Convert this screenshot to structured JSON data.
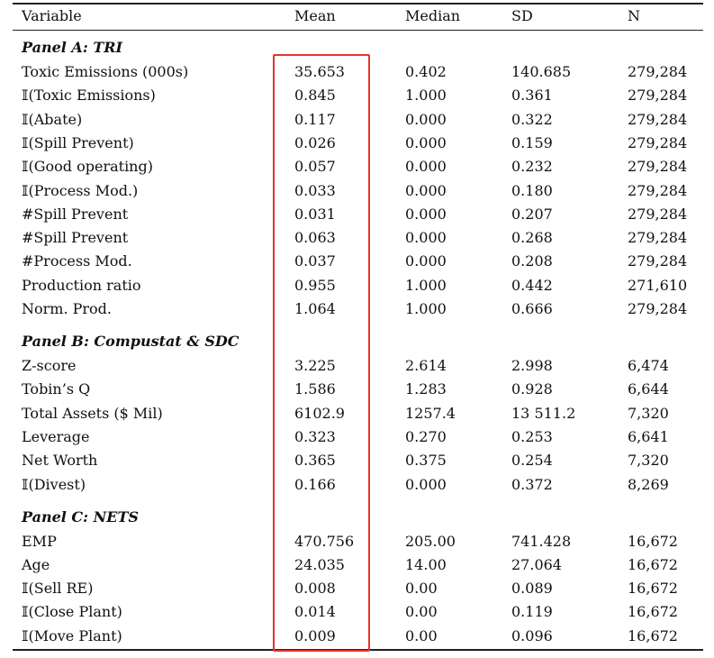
{
  "header": [
    "Variable",
    "Mean",
    "Median",
    "SD",
    "N"
  ],
  "panels": [
    {
      "title": "Panel A: TRI",
      "rows": [
        [
          "Toxic Emissions (000s)",
          "35.653",
          "0.402",
          "140.685",
          "279,284"
        ],
        [
          "𝕀(Toxic Emissions)",
          "0.845",
          "1.000",
          "0.361",
          "279,284"
        ],
        [
          "𝕀(Abate)",
          "0.117",
          "0.000",
          "0.322",
          "279,284"
        ],
        [
          "𝕀(Spill Prevent)",
          "0.026",
          "0.000",
          "0.159",
          "279,284"
        ],
        [
          "𝕀(Good operating)",
          "0.057",
          "0.000",
          "0.232",
          "279,284"
        ],
        [
          "𝕀(Process Mod.)",
          "0.033",
          "0.000",
          "0.180",
          "279,284"
        ],
        [
          "#Spill Prevent",
          "0.031",
          "0.000",
          "0.207",
          "279,284"
        ],
        [
          "#Spill Prevent",
          "0.063",
          "0.000",
          "0.268",
          "279,284"
        ],
        [
          "#Process Mod.",
          "0.037",
          "0.000",
          "0.208",
          "279,284"
        ],
        [
          "Production ratio",
          "0.955",
          "1.000",
          "0.442",
          "271,610"
        ],
        [
          "Norm. Prod.",
          "1.064",
          "1.000",
          "0.666",
          "279,284"
        ]
      ]
    },
    {
      "title": "Panel B: Compustat & SDC",
      "rows": [
        [
          "Z-score",
          "3.225",
          "2.614",
          "2.998",
          "6,474"
        ],
        [
          "Tobin’s Q",
          "1.586",
          "1.283",
          "0.928",
          "6,644"
        ],
        [
          "Total Assets ($ Mil)",
          "6102.9",
          "1257.4",
          "13 511.2",
          "7,320"
        ],
        [
          "Leverage",
          "0.323",
          "0.270",
          "0.253",
          "6,641"
        ],
        [
          "Net Worth",
          "0.365",
          "0.375",
          "0.254",
          "7,320"
        ],
        [
          "𝕀(Divest)",
          "0.166",
          "0.000",
          "0.372",
          "8,269"
        ]
      ]
    },
    {
      "title": "Panel C: NETS",
      "rows": [
        [
          "EMP",
          "470.756",
          "205.00",
          "741.428",
          "16,672"
        ],
        [
          "Age",
          "24.035",
          "14.00",
          "27.064",
          "16,672"
        ],
        [
          "𝕀(Sell RE)",
          "0.008",
          "0.00",
          "0.089",
          "16,672"
        ],
        [
          "𝕀(Close Plant)",
          "0.014",
          "0.00",
          "0.119",
          "16,672"
        ],
        [
          "𝕀(Move Plant)",
          "0.009",
          "0.00",
          "0.096",
          "16,672"
        ]
      ]
    }
  ]
}
